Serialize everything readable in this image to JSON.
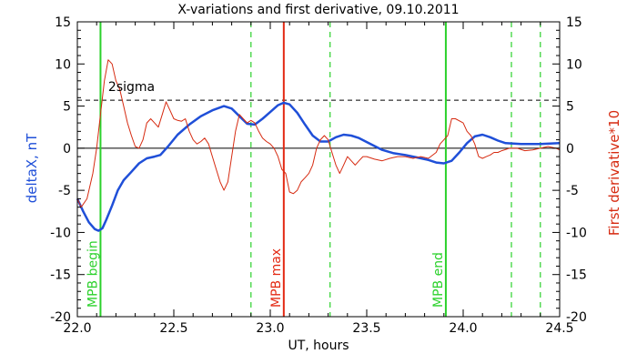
{
  "chart_data": {
    "type": "line",
    "title": "X-variations and first derivative, 09.10.2011",
    "xlabel": "UT, hours",
    "ylabel_left": "deltaX, nT",
    "ylabel_right": "First derivative*10",
    "xlim": [
      22.0,
      24.5
    ],
    "ylim": [
      -20,
      15
    ],
    "x_ticks": [
      "22.0",
      "22.5",
      "23.0",
      "23.5",
      "24.0",
      "24.5"
    ],
    "y_ticks": [
      "-20",
      "-15",
      "-10",
      "-5",
      "0",
      "5",
      "10",
      "15"
    ],
    "grid": false,
    "colors": {
      "deltaX": "#1f4fd8",
      "derivative": "#d62a10",
      "mpb_lines": "#2bd12b",
      "max_line": "#e32a14",
      "dashed_green": "#2bd12b",
      "threshold": "#000000"
    },
    "threshold": {
      "label": "2sigma",
      "y": 5.7
    },
    "zero_line_y": 0,
    "series": [
      {
        "key": "deltaX",
        "x": [
          22.0,
          22.03,
          22.06,
          22.09,
          22.11,
          22.13,
          22.15,
          22.18,
          22.21,
          22.24,
          22.28,
          22.32,
          22.36,
          22.4,
          22.43,
          22.47,
          22.52,
          22.58,
          22.64,
          22.7,
          22.76,
          22.8,
          22.84,
          22.88,
          22.92,
          22.96,
          23.0,
          23.04,
          23.07,
          23.1,
          23.14,
          23.18,
          23.22,
          23.26,
          23.3,
          23.34,
          23.38,
          23.42,
          23.46,
          23.52,
          23.58,
          23.64,
          23.7,
          23.76,
          23.82,
          23.86,
          23.9,
          23.94,
          23.98,
          24.02,
          24.06,
          24.1,
          24.14,
          24.18,
          24.22,
          24.3,
          24.4,
          24.5
        ],
        "values": [
          -6.0,
          -7.5,
          -8.8,
          -9.6,
          -9.8,
          -9.5,
          -8.5,
          -6.8,
          -5.0,
          -3.8,
          -2.8,
          -1.8,
          -1.2,
          -1.0,
          -0.8,
          0.2,
          1.6,
          2.8,
          3.8,
          4.5,
          5.0,
          4.7,
          3.8,
          2.9,
          2.8,
          3.5,
          4.3,
          5.1,
          5.4,
          5.2,
          4.2,
          2.8,
          1.5,
          0.8,
          0.8,
          1.3,
          1.6,
          1.5,
          1.2,
          0.5,
          -0.2,
          -0.6,
          -0.8,
          -1.1,
          -1.4,
          -1.7,
          -1.8,
          -1.5,
          -0.5,
          0.6,
          1.4,
          1.6,
          1.3,
          0.9,
          0.6,
          0.5,
          0.5,
          0.6
        ]
      },
      {
        "key": "derivative",
        "x": [
          22.0,
          22.02,
          22.05,
          22.08,
          22.1,
          22.12,
          22.14,
          22.16,
          22.18,
          22.2,
          22.22,
          22.24,
          22.26,
          22.28,
          22.3,
          22.32,
          22.34,
          22.36,
          22.38,
          22.4,
          22.42,
          22.44,
          22.46,
          22.48,
          22.5,
          22.52,
          22.54,
          22.56,
          22.58,
          22.6,
          22.62,
          22.64,
          22.66,
          22.68,
          22.7,
          22.72,
          22.74,
          22.76,
          22.78,
          22.8,
          22.82,
          22.84,
          22.86,
          22.88,
          22.9,
          22.92,
          22.94,
          22.96,
          22.98,
          23.0,
          23.02,
          23.04,
          23.06,
          23.08,
          23.1,
          23.12,
          23.14,
          23.16,
          23.18,
          23.2,
          23.22,
          23.24,
          23.26,
          23.28,
          23.3,
          23.32,
          23.34,
          23.36,
          23.38,
          23.4,
          23.42,
          23.44,
          23.46,
          23.48,
          23.5,
          23.54,
          23.58,
          23.62,
          23.66,
          23.7,
          23.74,
          23.78,
          23.82,
          23.86,
          23.88,
          23.9,
          23.92,
          23.94,
          23.96,
          24.0,
          24.02,
          24.04,
          24.06,
          24.08,
          24.1,
          24.12,
          24.14,
          24.16,
          24.18,
          24.2,
          24.24,
          24.28,
          24.32,
          24.36,
          24.4,
          24.44,
          24.48,
          24.5
        ],
        "values": [
          -6.0,
          -7.0,
          -6.0,
          -3.0,
          0.0,
          4.0,
          8.0,
          10.5,
          10.0,
          8.0,
          7.0,
          5.0,
          3.0,
          1.5,
          0.2,
          0.0,
          1.0,
          3.0,
          3.5,
          3.0,
          2.5,
          4.0,
          5.5,
          4.5,
          3.5,
          3.3,
          3.2,
          3.5,
          2.0,
          1.0,
          0.5,
          0.8,
          1.2,
          0.5,
          -1.0,
          -2.5,
          -4.0,
          -5.0,
          -4.0,
          -1.0,
          2.0,
          4.0,
          3.5,
          3.0,
          3.3,
          3.0,
          2.0,
          1.2,
          0.8,
          0.5,
          0.0,
          -1.0,
          -2.5,
          -3.0,
          -5.2,
          -5.4,
          -5.0,
          -4.0,
          -3.5,
          -3.0,
          -2.0,
          0.0,
          1.0,
          1.5,
          1.0,
          -0.5,
          -2.0,
          -3.0,
          -2.0,
          -1.0,
          -1.5,
          -2.0,
          -1.5,
          -1.0,
          -1.0,
          -1.3,
          -1.5,
          -1.2,
          -1.0,
          -1.0,
          -1.2,
          -1.0,
          -1.2,
          -0.5,
          0.5,
          1.0,
          1.5,
          3.5,
          3.5,
          3.0,
          2.0,
          1.5,
          0.5,
          -1.0,
          -1.2,
          -1.0,
          -0.8,
          -0.5,
          -0.5,
          -0.3,
          0.0,
          0.0,
          -0.3,
          -0.2,
          0.0,
          0.2,
          0.0,
          -0.2
        ]
      }
    ],
    "markers": [
      {
        "key": "mpb_begin",
        "label": "MPB begin",
        "x": 22.12,
        "style": "solid",
        "color": "#2bd12b"
      },
      {
        "key": "mpb_max",
        "label": "MPB max",
        "x": 23.07,
        "style": "solid",
        "color": "#e32a14"
      },
      {
        "key": "mpb_end",
        "label": "MPB end",
        "x": 23.91,
        "style": "solid",
        "color": "#2bd12b"
      },
      {
        "key": "dash1",
        "label": "",
        "x": 22.9,
        "style": "dashed",
        "color": "#2bd12b"
      },
      {
        "key": "dash2",
        "label": "",
        "x": 23.31,
        "style": "dashed",
        "color": "#2bd12b"
      },
      {
        "key": "dash3",
        "label": "",
        "x": 24.25,
        "style": "dashed",
        "color": "#2bd12b"
      },
      {
        "key": "dash4",
        "label": "",
        "x": 24.4,
        "style": "dashed",
        "color": "#2bd12b"
      }
    ]
  }
}
